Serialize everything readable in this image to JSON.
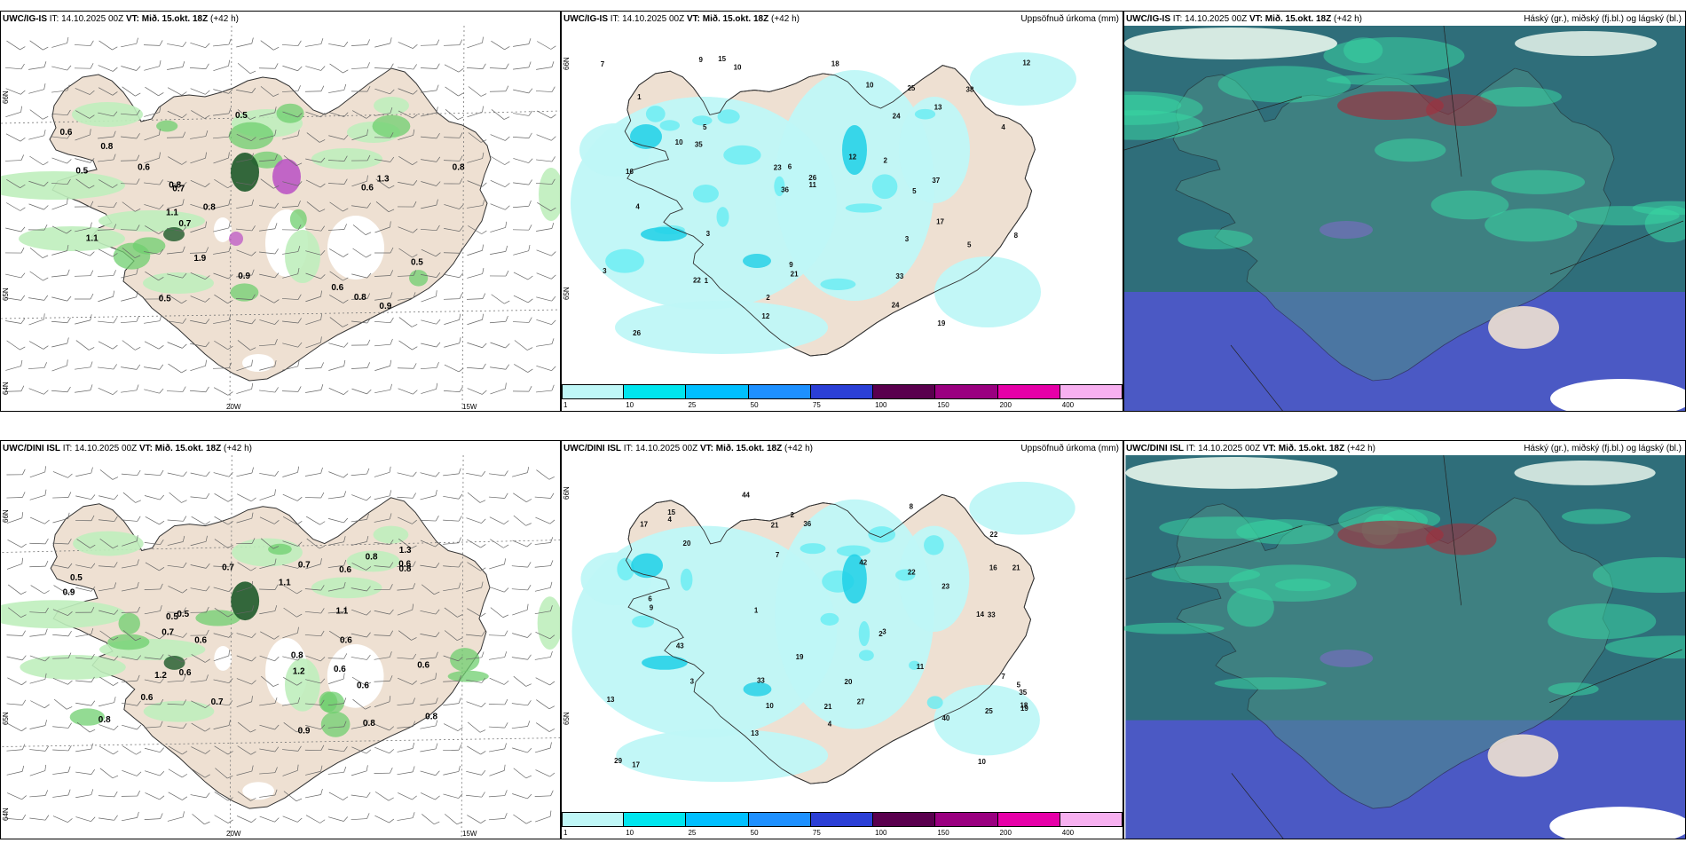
{
  "panels": [
    {
      "model": "UWC/IG-IS",
      "it_label": "IT:",
      "it_value": "14.10.2025 00Z",
      "vt_label": "VT:",
      "vt_value": "Mið. 15.okt. 18Z",
      "lead": "(+42 h)",
      "right_title": "",
      "type": "wind-precip",
      "ticks_bottom": [
        "20W",
        "15W"
      ],
      "ticks_left": [
        "66N",
        "65N",
        "64N"
      ],
      "labels": [
        "0.8",
        "0.7",
        "0.6",
        "0.8",
        "0.5",
        "0.5",
        "0.6",
        "0.8",
        "0.6",
        "0.8",
        "0.9",
        "1.1",
        "0.5",
        "0.5",
        "1.9",
        "1.3",
        "1.1",
        "0.7",
        "0.8",
        "0.6",
        "0.9"
      ]
    },
    {
      "model": "UWC/IG-IS",
      "it_label": "IT:",
      "it_value": "14.10.2025 00Z",
      "vt_label": "VT:",
      "vt_value": "Mið. 15.okt. 18Z",
      "lead": "(+42 h)",
      "right_title": "Uppsöfnuð úrkoma (mm)",
      "type": "accum",
      "ticks_left": [
        "66N",
        "65N"
      ],
      "labels": [
        "2",
        "5",
        "1",
        "3",
        "36",
        "38",
        "26",
        "22",
        "24",
        "25",
        "21",
        "16",
        "15",
        "9",
        "10",
        "11",
        "18",
        "37",
        "33",
        "26",
        "19",
        "35",
        "12",
        "24",
        "23",
        "13",
        "17",
        "12",
        "10",
        "6",
        "4",
        "9",
        "8",
        "5",
        "4",
        "3",
        "2",
        "1",
        "3",
        "5",
        "7",
        "10",
        "12"
      ]
    },
    {
      "model": "UWC/IG-IS",
      "it_label": "IT:",
      "it_value": "14.10.2025 00Z",
      "vt_label": "VT:",
      "vt_value": "Mið. 15.okt. 18Z",
      "lead": "(+42 h)",
      "right_title": "Háský (gr.), miðský (fj.bl.) og lágský (bl.)",
      "type": "clouds"
    },
    {
      "model": "UWC/DINI ISL",
      "it_label": "IT:",
      "it_value": "14.10.2025 00Z",
      "vt_label": "VT:",
      "vt_value": "Mið. 15.okt. 18Z",
      "lead": "(+42 h)",
      "right_title": "",
      "type": "wind-precip",
      "ticks_bottom": [
        "20W",
        "15W"
      ],
      "ticks_left": [
        "66N",
        "65N",
        "64N"
      ],
      "labels": [
        "0.6",
        "0.9",
        "0.7",
        "0.7",
        "0.8",
        "0.6",
        "0.5",
        "0.8",
        "0.6",
        "0.8",
        "0.6",
        "1.1",
        "0.7",
        "0.6",
        "0.5",
        "1.2",
        "1.3",
        "0.7",
        "0.8",
        "1.2",
        "0.6",
        "0.5",
        "0.8",
        "0.6",
        "0.8",
        "0.6",
        "1.1",
        "0.9",
        "0.6"
      ]
    },
    {
      "model": "UWC/DINI ISL",
      "it_label": "IT:",
      "it_value": "14.10.2025 00Z",
      "vt_label": "VT:",
      "vt_value": "Mið. 15.okt. 18Z",
      "lead": "(+42 h)",
      "right_title": "Uppsöfnuð úrkoma (mm)",
      "type": "accum",
      "ticks_left": [
        "66N",
        "65N"
      ],
      "labels": [
        "4",
        "3",
        "2",
        "7",
        "20",
        "21",
        "22",
        "29",
        "42",
        "23",
        "33",
        "25",
        "35",
        "22",
        "20",
        "27",
        "13",
        "40",
        "19",
        "18",
        "17",
        "36",
        "43",
        "44",
        "21",
        "33",
        "16",
        "17",
        "21",
        "15",
        "14",
        "13",
        "10",
        "9",
        "8",
        "7",
        "6",
        "5",
        "4",
        "3",
        "2",
        "1",
        "11",
        "19",
        "10"
      ]
    },
    {
      "model": "UWC/DINI ISL",
      "it_label": "IT:",
      "it_value": "14.10.2025 00Z",
      "vt_label": "VT:",
      "vt_value": "Mið. 15.okt. 18Z",
      "lead": "(+42 h)",
      "right_title": "Háský (gr.), miðský (fj.bl.) og lágský (bl.)",
      "type": "clouds"
    }
  ],
  "colorbar": {
    "labels": [
      "1",
      "10",
      "25",
      "50",
      "75",
      "100",
      "150",
      "200",
      "400"
    ],
    "colors": [
      "#bff7f7",
      "#00e5ee",
      "#00bfff",
      "#1e90ff",
      "#2b3fd6",
      "#5a004e",
      "#9a0080",
      "#e600a8",
      "#f7b0f0"
    ]
  },
  "colors": {
    "land": "#eee0d2",
    "accum_light": "#bff7f7",
    "accum_mid": "#66ecf2",
    "accum_dark": "#1fd0e6",
    "precip_light": "#bfeebc",
    "precip_mid": "#6fcf6f",
    "precip_dark": "#1e5a2a",
    "cloud_low": "#4b59c4",
    "cloud_mid": "#2f6e7a",
    "cloud_high": "#38d6a2"
  }
}
